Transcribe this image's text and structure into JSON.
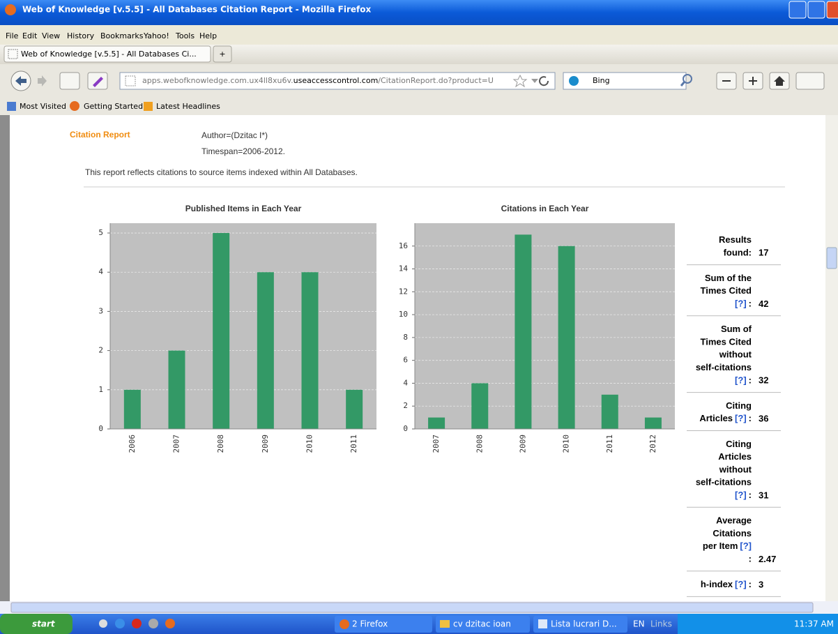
{
  "window": {
    "title": "Web of Knowledge [v.5.5] - All Databases Citation Report - Mozilla Firefox"
  },
  "menu": [
    "File",
    "Edit",
    "View",
    "History",
    "Bookmarks",
    "Yahoo!",
    "Tools",
    "Help"
  ],
  "tab": {
    "title": "Web of Knowledge [v.5.5] - All Databases Ci...",
    "new": "+"
  },
  "address": {
    "host": "apps.webofknowledge.com.ux4ll8xu6v.",
    "domain": "useaccesscontrol.com",
    "path": "/CitationReport.do?product=U"
  },
  "search": {
    "engine": "Bing"
  },
  "bookmarks": [
    "Most Visited",
    "Getting Started",
    "Latest Headlines"
  ],
  "report": {
    "heading": "Citation Report",
    "query": "Author=(Dzitac I*)",
    "timespan": "Timespan=2006-2012.",
    "note": "This report reflects citations to source items indexed within All Databases."
  },
  "chart_data": [
    {
      "type": "bar",
      "title": "Published Items in Each Year",
      "categories": [
        "2006",
        "2007",
        "2008",
        "2009",
        "2010",
        "2011"
      ],
      "values": [
        1,
        2,
        5,
        4,
        4,
        1
      ],
      "color": "#339966",
      "ylim": [
        0,
        5.25
      ],
      "yticks": [
        0,
        1,
        2,
        3,
        4,
        5
      ],
      "grid": true
    },
    {
      "type": "bar",
      "title": "Citations in Each Year",
      "categories": [
        "2007",
        "2008",
        "2009",
        "2010",
        "2011",
        "2012"
      ],
      "values": [
        1,
        4,
        17,
        16,
        3,
        1
      ],
      "color": "#339966",
      "ylim": [
        0,
        18
      ],
      "yticks": [
        0,
        2,
        4,
        6,
        8,
        10,
        12,
        14,
        16
      ],
      "grid": true
    }
  ],
  "stats": [
    {
      "rows": [
        [
          "Results"
        ],
        [
          "found:"
        ]
      ],
      "value": 17
    },
    {
      "rows": [
        [
          "Sum of the"
        ],
        [
          "Times Cited"
        ],
        [
          {
            "text": "[?]",
            "link": true
          },
          ":"
        ]
      ],
      "value": 42
    },
    {
      "rows": [
        [
          "Sum of"
        ],
        [
          "Times Cited"
        ],
        [
          "without"
        ],
        [
          "self-citations"
        ],
        [
          {
            "text": "[?]",
            "link": true
          },
          ":"
        ]
      ],
      "value": 32
    },
    {
      "rows": [
        [
          "Citing"
        ],
        [
          "Articles",
          {
            "text": "[?]",
            "link": true
          },
          ":"
        ]
      ],
      "value": 36,
      "link": true
    },
    {
      "rows": [
        [
          "Citing"
        ],
        [
          "Articles"
        ],
        [
          "without"
        ],
        [
          "self-citations"
        ],
        [
          {
            "text": "[?]",
            "link": true
          },
          ":"
        ]
      ],
      "value": 31,
      "link": true
    },
    {
      "rows": [
        [
          "Average"
        ],
        [
          "Citations"
        ],
        [
          "per Item",
          {
            "text": "[?]",
            "link": true
          }
        ],
        [
          ":"
        ]
      ],
      "value": 2.47
    },
    {
      "rows": [
        [
          "h-index",
          {
            "text": "[?]",
            "link": true
          },
          ":"
        ]
      ],
      "value": 3
    }
  ],
  "taskbar": {
    "start": "start",
    "tasks": [
      "2 Firefox",
      "cv dzitac ioan",
      "Lista lucrari D..."
    ],
    "language": "EN",
    "links": "Links",
    "clock": "11:37 AM"
  }
}
